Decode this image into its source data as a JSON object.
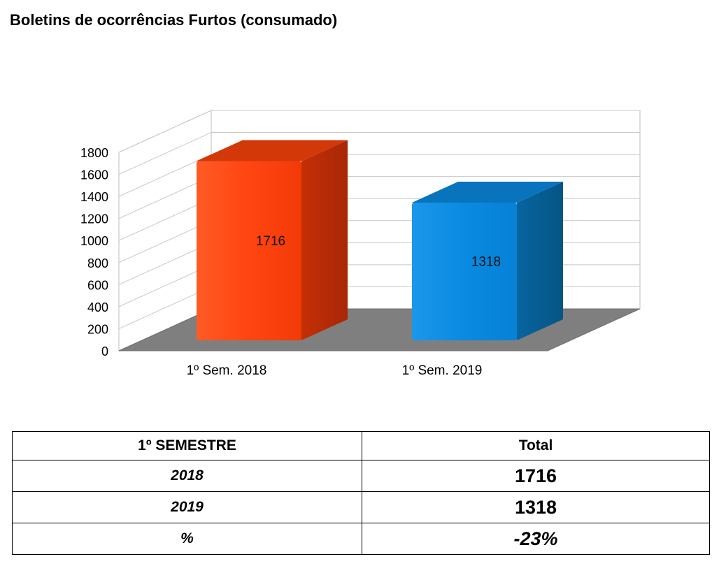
{
  "title": "Boletins de ocorrências Furtos (consumado)",
  "chart_data": {
    "type": "bar",
    "style": "3d",
    "categories": [
      "1º Sem. 2018",
      "1º Sem. 2019"
    ],
    "values": [
      1716,
      1318
    ],
    "data_labels": [
      "1716",
      "1318"
    ],
    "colors": [
      "#ff4713",
      "#0c8ae0"
    ],
    "yticks": [
      "0",
      "200",
      "400",
      "600",
      "800",
      "1000",
      "1200",
      "1400",
      "1600",
      "1800"
    ],
    "ylim": [
      0,
      1800
    ],
    "grid": true,
    "legend": "none"
  },
  "table": {
    "headers": [
      "1º SEMESTRE",
      "Total"
    ],
    "rows": [
      {
        "label": "2018",
        "value": "1716"
      },
      {
        "label": "2019",
        "value": "1318"
      },
      {
        "label": "%",
        "value": "-23%"
      }
    ]
  }
}
